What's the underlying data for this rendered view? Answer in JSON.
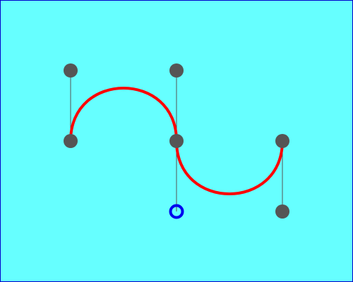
{
  "canvas": {
    "background": "#66ffff",
    "border_color": "#0000cc"
  },
  "colors": {
    "curve": "#ff0000",
    "handle_line": "#555555",
    "control_point": "#555555",
    "selected_point": "#0000ee"
  },
  "editor": {
    "selected_point_icon": "hollow-circle-icon",
    "control_point_icon": "filled-circle-icon"
  }
}
